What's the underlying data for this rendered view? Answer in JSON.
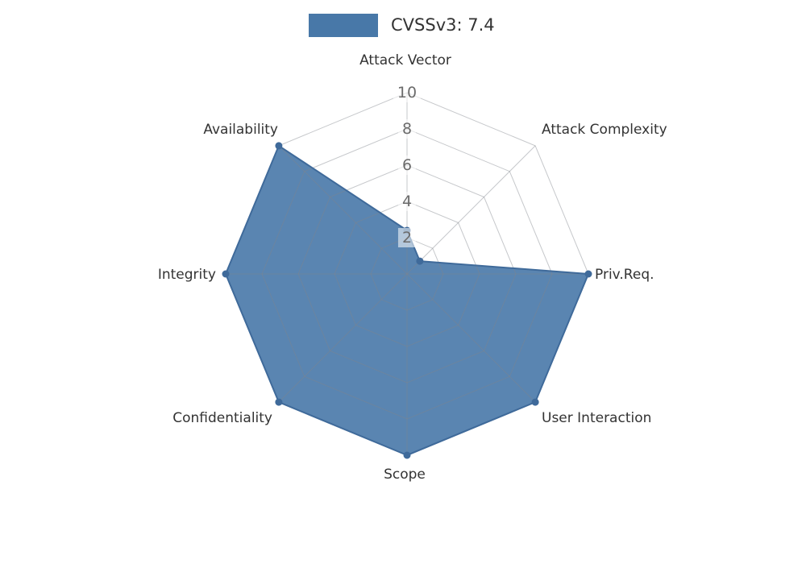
{
  "chart_data": {
    "type": "radar",
    "legend": {
      "label": "CVSSv3: 7.4",
      "position": "top-center"
    },
    "axes": [
      "Attack Vector",
      "Attack Complexity",
      "Priv.Req.",
      "User Interaction",
      "Scope",
      "Confidentiality",
      "Integrity",
      "Availability"
    ],
    "series": [
      {
        "name": "CVSSv3: 7.4",
        "values": [
          2.4,
          1,
          10,
          10,
          10,
          10,
          10,
          10
        ]
      }
    ],
    "ticks": [
      "2",
      "4",
      "6",
      "8",
      "10"
    ],
    "tick_values": [
      2,
      4,
      6,
      8,
      10
    ],
    "max": 10,
    "grid": "spider-web",
    "colors": {
      "series": "#4878a8",
      "area": "rgba(72,120,168,0.9)",
      "outline": "#3f6a9a",
      "dot": "#3f6a9a",
      "grid_line": "rgba(128,132,140,0.45)",
      "axis_name": "#333333",
      "tick_label": "#6b6b6b",
      "tick_bg": "rgba(255,255,255,0.55)",
      "legend_text": "#333333"
    }
  }
}
